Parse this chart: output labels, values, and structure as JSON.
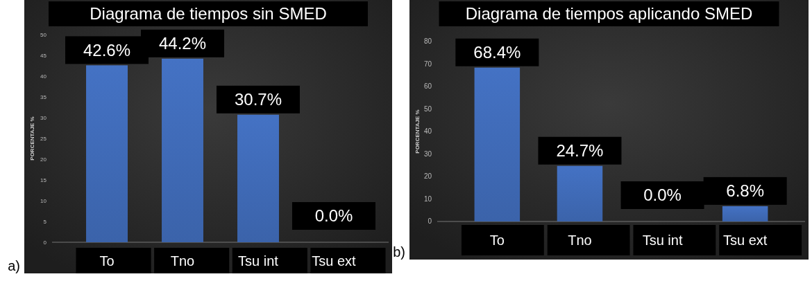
{
  "chart_data": [
    {
      "type": "bar",
      "title": "Diagrama de tiempos sin SMED",
      "ylabel": "PORCENTAJE %",
      "categories": [
        "To",
        "Tno",
        "Tsu int",
        "Tsu ext"
      ],
      "values": [
        42.6,
        44.2,
        30.7,
        0.0
      ],
      "value_labels": [
        "42.6%",
        "44.2%",
        "30.7%",
        "0.0%"
      ],
      "color": "#4472c4",
      "ylim": [
        0,
        50
      ],
      "yticks": [
        0,
        5,
        10,
        15,
        20,
        25,
        30,
        35,
        40,
        45,
        50
      ],
      "grid": false,
      "annotations": [
        "a)"
      ]
    },
    {
      "type": "bar",
      "title": "Diagrama de tiempos aplicando SMED",
      "ylabel": "PORCENTAJE %",
      "categories": [
        "To",
        "Tno",
        "Tsu int",
        "Tsu ext"
      ],
      "values": [
        68.4,
        24.7,
        0.0,
        6.8
      ],
      "value_labels": [
        "68.4%",
        "24.7%",
        "0.0%",
        "6.8%"
      ],
      "color": "#4472c4",
      "ylim": [
        0,
        80
      ],
      "yticks": [
        0,
        10,
        20,
        30,
        40,
        50,
        60,
        70,
        80
      ],
      "grid": false,
      "annotations": [
        "b)"
      ]
    }
  ]
}
